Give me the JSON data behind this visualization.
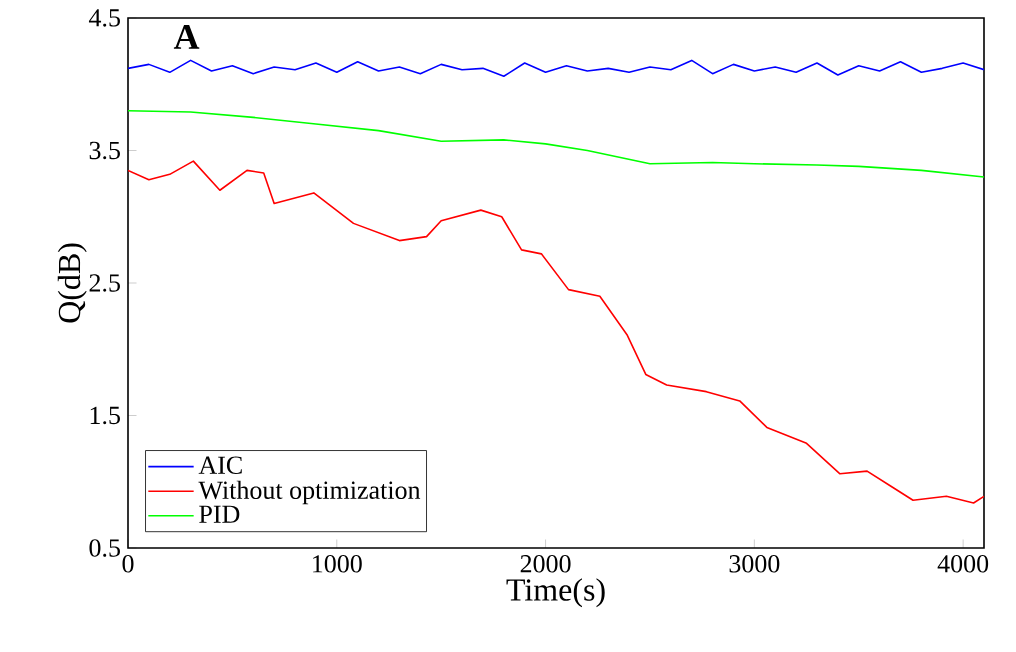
{
  "chart_data": {
    "type": "line",
    "xlabel": "Time(s)",
    "ylabel": "Q(dB)",
    "annotations": [
      "A"
    ],
    "xlim": [
      0,
      4100
    ],
    "ylim": [
      0.5,
      4.5
    ],
    "xticks": [
      0,
      1000,
      2000,
      3000,
      4000
    ],
    "yticks": [
      0.5,
      1.5,
      2.5,
      3.5,
      4.5
    ],
    "legend": "bottom left",
    "grid": false,
    "marker": "none",
    "line_style": "solid",
    "series": [
      {
        "name": "AIC",
        "color": "#0000ff",
        "x": [
          0,
          100,
          200,
          300,
          400,
          500,
          600,
          700,
          800,
          900,
          1000,
          1100,
          1200,
          1300,
          1400,
          1500,
          1600,
          1700,
          1800,
          1900,
          2000,
          2100,
          2200,
          2300,
          2400,
          2500,
          2600,
          2700,
          2800,
          2900,
          3000,
          3100,
          3200,
          3300,
          3400,
          3500,
          3600,
          3700,
          3800,
          3900,
          4000,
          4100
        ],
        "values": [
          4.12,
          4.15,
          4.09,
          4.18,
          4.1,
          4.14,
          4.08,
          4.13,
          4.11,
          4.16,
          4.09,
          4.17,
          4.1,
          4.13,
          4.08,
          4.15,
          4.11,
          4.12,
          4.06,
          4.16,
          4.09,
          4.14,
          4.1,
          4.12,
          4.09,
          4.13,
          4.11,
          4.18,
          4.08,
          4.15,
          4.1,
          4.13,
          4.09,
          4.16,
          4.07,
          4.14,
          4.1,
          4.17,
          4.09,
          4.12,
          4.16,
          4.11
        ]
      },
      {
        "name": "Without optimization",
        "color": "#ff0000",
        "x": [
          0,
          100,
          200,
          313,
          440,
          570,
          650,
          700,
          890,
          1080,
          1300,
          1430,
          1500,
          1690,
          1790,
          1885,
          1980,
          2110,
          2260,
          2390,
          2480,
          2580,
          2770,
          2930,
          3060,
          3250,
          3410,
          3540,
          3660,
          3760,
          3920,
          4050,
          4100
        ],
        "values": [
          3.35,
          3.28,
          3.32,
          3.42,
          3.2,
          3.35,
          3.33,
          3.1,
          3.18,
          2.95,
          2.82,
          2.85,
          2.97,
          3.05,
          3.0,
          2.75,
          2.72,
          2.45,
          2.4,
          2.11,
          1.81,
          1.73,
          1.68,
          1.61,
          1.41,
          1.29,
          1.06,
          1.08,
          0.96,
          0.86,
          0.89,
          0.84,
          0.89
        ]
      },
      {
        "name": "PID",
        "color": "#00ff00",
        "x": [
          0,
          300,
          600,
          900,
          1200,
          1500,
          1800,
          2000,
          2200,
          2500,
          2800,
          3000,
          3300,
          3500,
          3800,
          4100
        ],
        "values": [
          3.8,
          3.79,
          3.75,
          3.7,
          3.65,
          3.57,
          3.58,
          3.55,
          3.5,
          3.4,
          3.41,
          3.4,
          3.39,
          3.38,
          3.35,
          3.3
        ]
      }
    ]
  }
}
